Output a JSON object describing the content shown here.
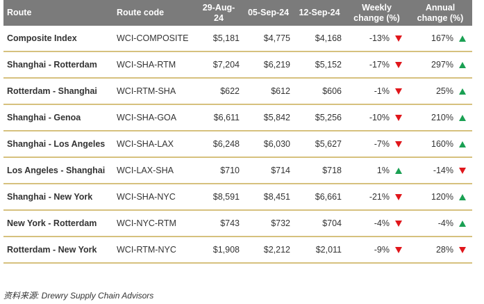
{
  "table": {
    "columns": [
      "Route",
      "Route code",
      "29-Aug-24",
      "05-Sep-24",
      "12-Sep-24",
      "Weekly change (%)",
      "Annual change (%)"
    ],
    "rows": [
      [
        "Composite Index",
        "WCI-COMPOSITE",
        "$5,181",
        "$4,775",
        "$4,168",
        "-13%",
        "167%"
      ],
      [
        "Shanghai - Rotterdam",
        "WCI-SHA-RTM",
        "$7,204",
        "$6,219",
        "$5,152",
        "-17%",
        "297%"
      ],
      [
        "Rotterdam - Shanghai",
        "WCI-RTM-SHA",
        "$622",
        "$612",
        "$606",
        "-1%",
        "25%"
      ],
      [
        "Shanghai - Genoa",
        "WCI-SHA-GOA",
        "$6,611",
        "$5,842",
        "$5,256",
        "-10%",
        "210%"
      ],
      [
        "Shanghai - Los Angeles",
        "WCI-SHA-LAX",
        "$6,248",
        "$6,030",
        "$5,627",
        "-7%",
        "160%"
      ],
      [
        "Los Angeles - Shanghai",
        "WCI-LAX-SHA",
        "$710",
        "$714",
        "$718",
        "1%",
        "-14%"
      ],
      [
        "Shanghai - New York",
        "WCI-SHA-NYC",
        "$8,591",
        "$8,451",
        "$6,661",
        "-21%",
        "120%"
      ],
      [
        "New York - Rotterdam",
        "WCI-NYC-RTM",
        "$743",
        "$732",
        "$704",
        "-4%",
        "-4%"
      ],
      [
        "Rotterdam - New York",
        "WCI-RTM-NYC",
        "$1,908",
        "$2,212",
        "$2,011",
        "-9%",
        "28%"
      ]
    ]
  },
  "source": "资料来源: Drewry Supply Chain Advisors"
}
